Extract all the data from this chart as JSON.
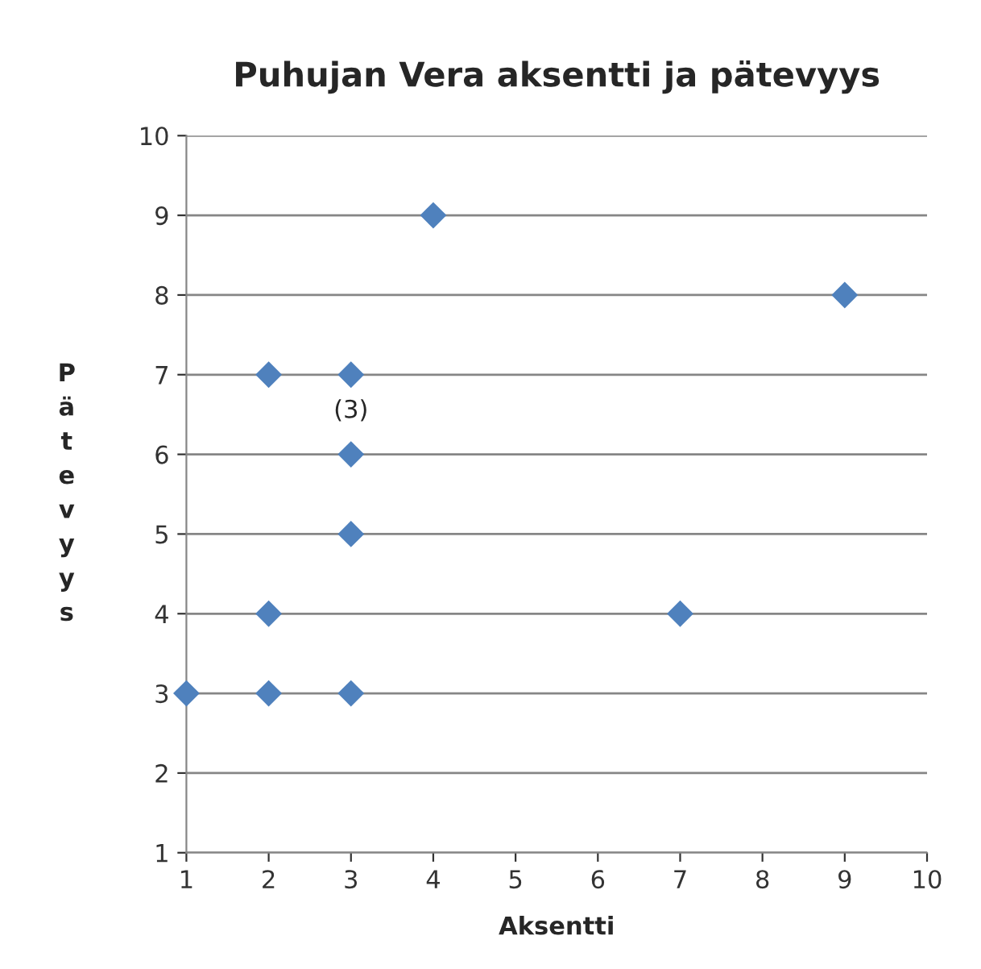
{
  "chart_data": {
    "type": "scatter",
    "title": "Puhujan Vera aksentti ja pätevyys",
    "xlabel": "Aksentti",
    "ylabel": "Pätevyys",
    "series": [
      {
        "color": "#4f81bd",
        "x": [
          1,
          2,
          3,
          2,
          7,
          3,
          3,
          2,
          3,
          4,
          9
        ],
        "values": [
          3,
          3,
          3,
          4,
          4,
          5,
          6,
          7,
          7,
          9,
          8
        ]
      }
    ],
    "annotations": [
      {
        "text": "(3)",
        "x": 3,
        "y": 6
      }
    ],
    "xlim": [
      1,
      10
    ],
    "xticks": [
      1,
      2,
      3,
      4,
      5,
      6,
      7,
      8,
      9,
      10
    ],
    "ylim": [
      1,
      10
    ],
    "yticks": [
      1,
      2,
      3,
      4,
      5,
      6,
      7,
      8,
      9,
      10
    ],
    "grid": "y",
    "marker": "diamond",
    "legend": false
  }
}
